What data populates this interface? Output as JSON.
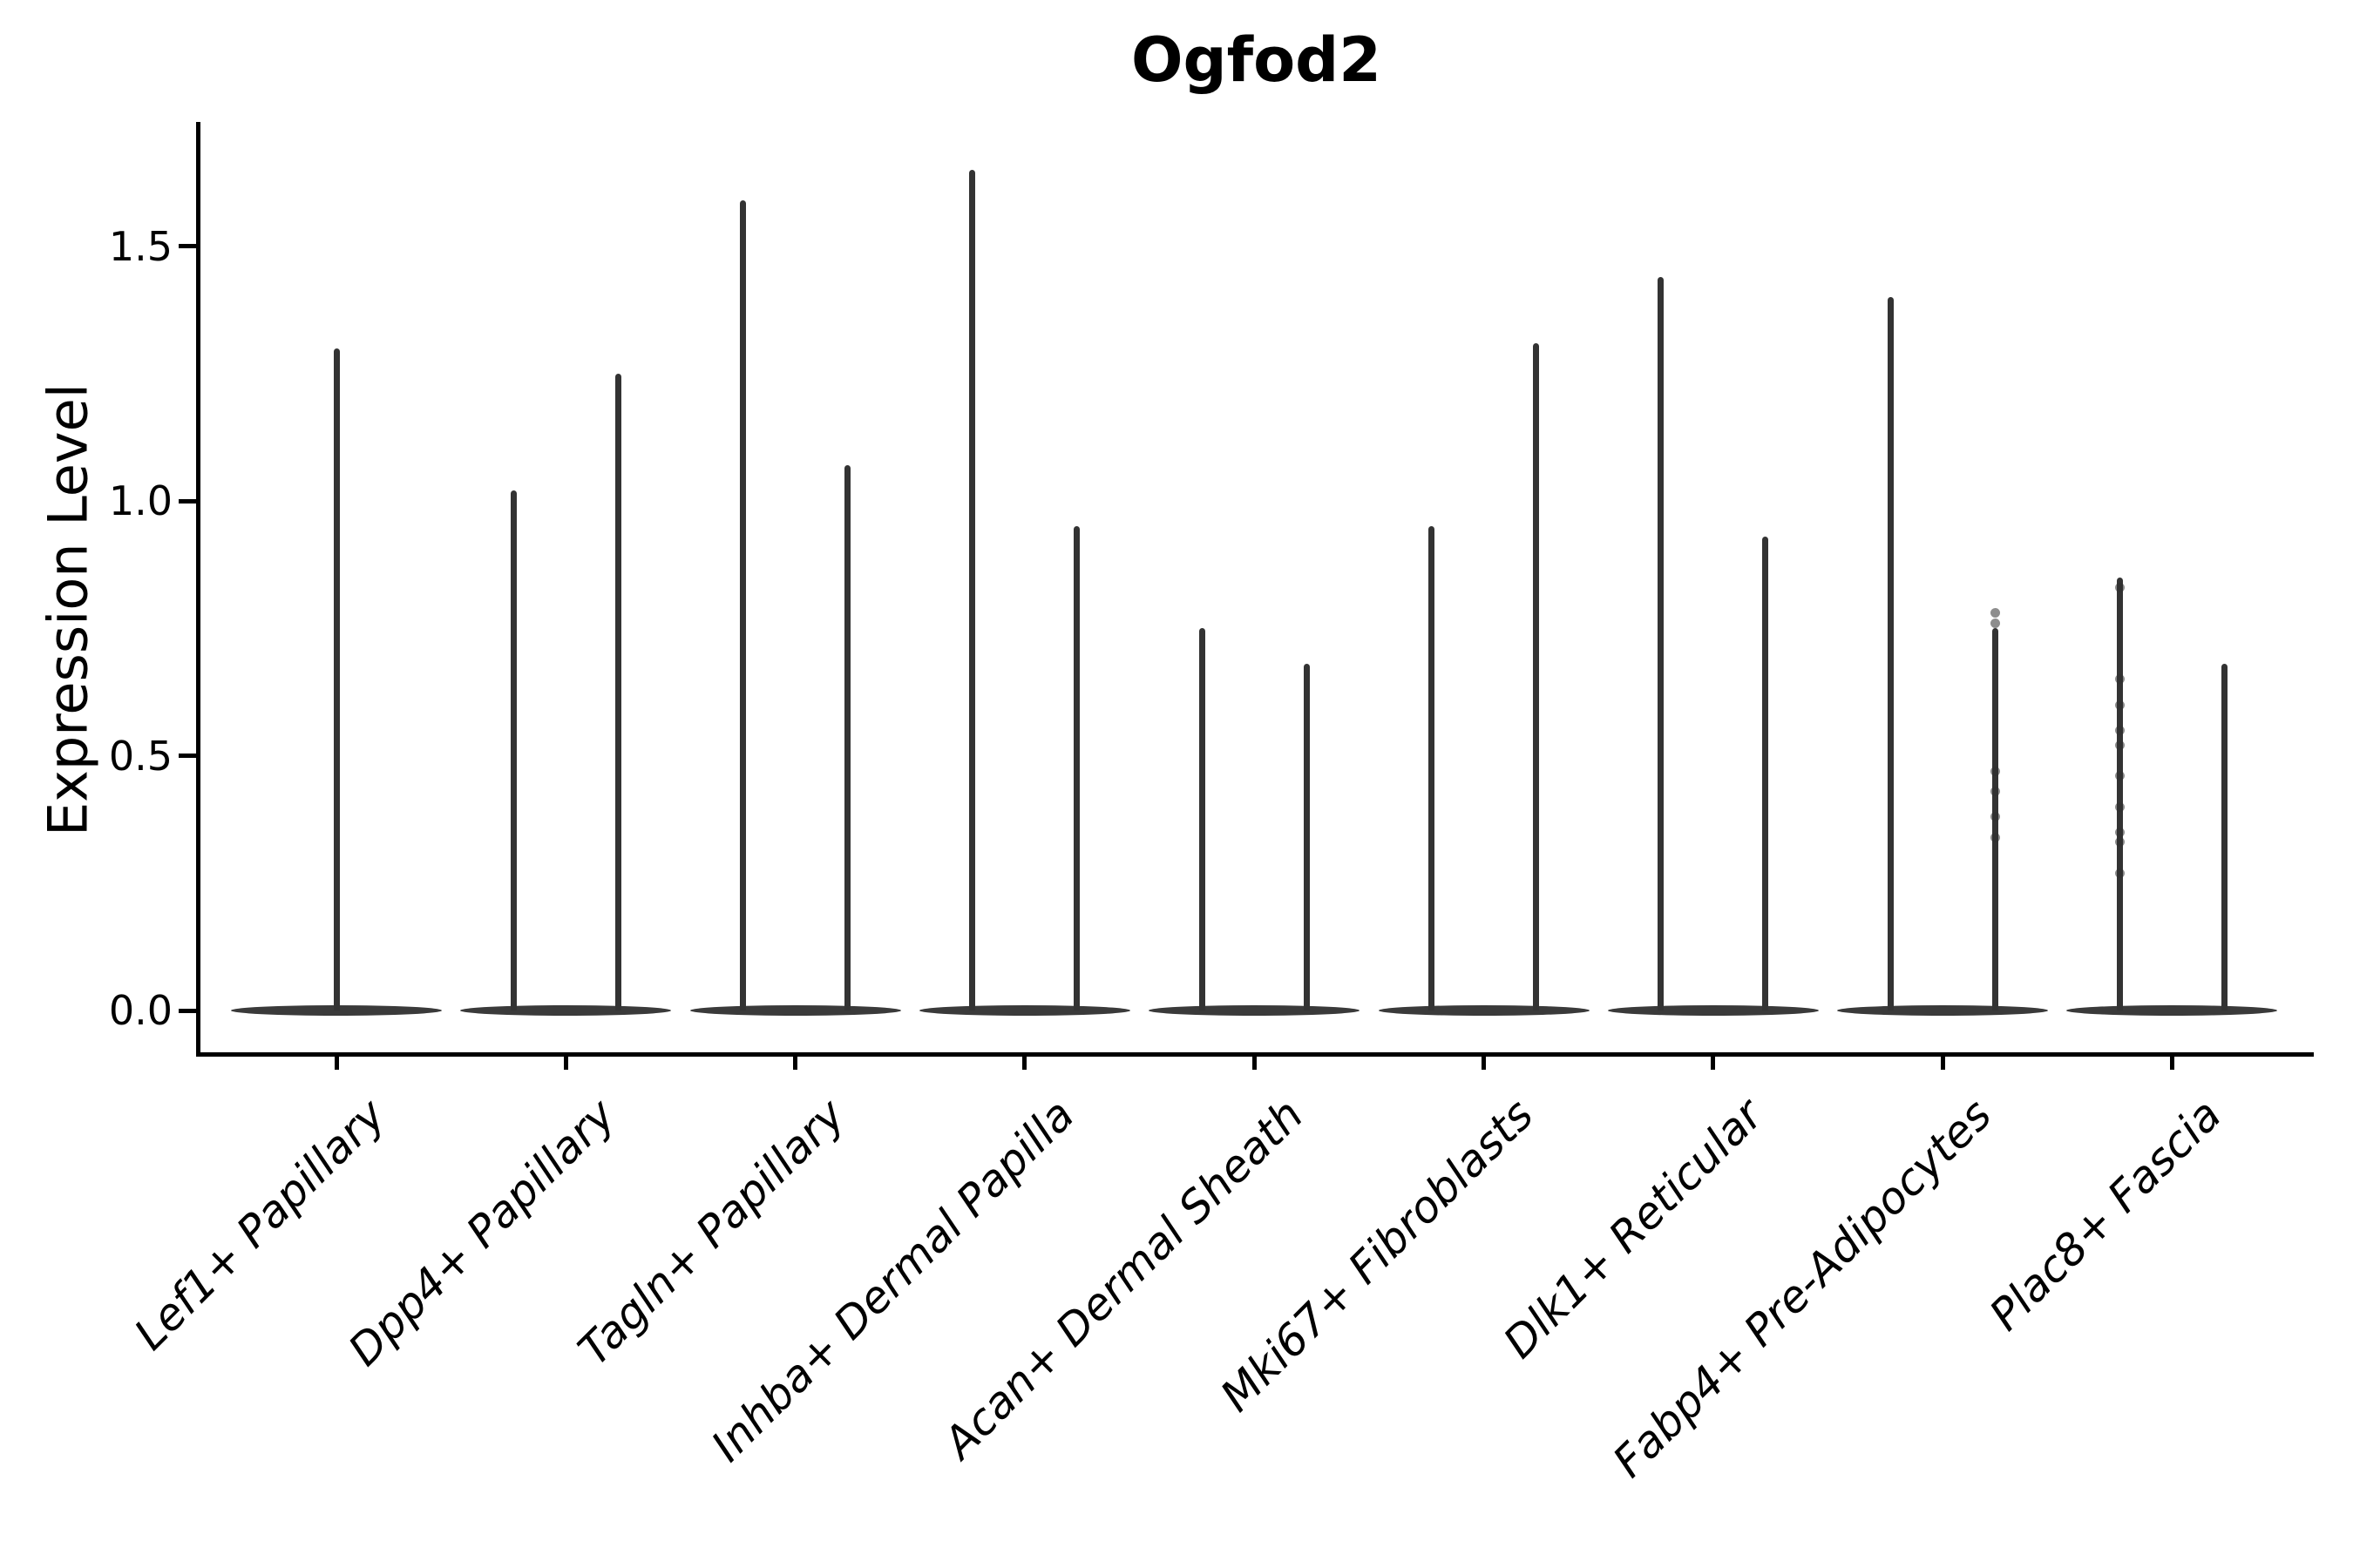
{
  "colors": {
    "violin": "#3a3a3a",
    "spike": "#333333",
    "dot": "#2f2f2f",
    "axis": "#000000",
    "background": "#ffffff"
  },
  "chart_data": {
    "type": "violin",
    "title": "Ogfod2",
    "xlabel": "",
    "ylabel": "Expression Level",
    "ylim": [
      -0.08,
      1.74
    ],
    "yticks": [
      0.0,
      0.5,
      1.0,
      1.5
    ],
    "ytick_labels": [
      "0.0",
      "0.5",
      "1.0",
      "1.5"
    ],
    "grid": false,
    "legend": "none",
    "description": "Split violin plot of Ogfod2 expression; most cells at 0 giving flat violins with thin upper tails; max tail height per violin listed below",
    "categories": [
      {
        "label": "Lef1+ Papillary",
        "violins": [
          {
            "offset": 0,
            "max": 1.3
          }
        ]
      },
      {
        "label": "Dpp4+ Papillary",
        "violins": [
          {
            "offset": -60,
            "max": 1.02
          },
          {
            "offset": 60,
            "max": 1.25
          }
        ]
      },
      {
        "label": "Tagln+ Papillary",
        "violins": [
          {
            "offset": -60,
            "max": 1.59
          },
          {
            "offset": 60,
            "max": 1.07
          }
        ]
      },
      {
        "label": "Inhba+ Dermal Papilla",
        "violins": [
          {
            "offset": -60,
            "max": 1.65
          },
          {
            "offset": 60,
            "max": 0.95
          }
        ]
      },
      {
        "label": "Acan+ Dermal Sheath",
        "violins": [
          {
            "offset": -60,
            "max": 0.75
          },
          {
            "offset": 60,
            "max": 0.68
          }
        ]
      },
      {
        "label": "Mki67+ Fibroblasts",
        "violins": [
          {
            "offset": -60,
            "max": 0.95
          },
          {
            "offset": 60,
            "max": 1.31
          }
        ]
      },
      {
        "label": "Dlk1+ Reticular",
        "violins": [
          {
            "offset": -60,
            "max": 1.44
          },
          {
            "offset": 60,
            "max": 0.93
          }
        ]
      },
      {
        "label": "Fabp4+ Pre-Adipocytes",
        "violins": [
          {
            "offset": -60,
            "max": 1.4
          },
          {
            "offset": 60,
            "max": 0.75,
            "points": [
              0.78,
              0.76,
              0.47,
              0.43,
              0.38,
              0.34
            ]
          }
        ]
      },
      {
        "label": "Plac8+ Fascia",
        "violins": [
          {
            "offset": -60,
            "max": 0.85,
            "points": [
              0.83,
              0.65,
              0.6,
              0.55,
              0.52,
              0.46,
              0.4,
              0.35,
              0.33,
              0.27
            ]
          },
          {
            "offset": 60,
            "max": 0.68
          }
        ]
      }
    ]
  }
}
